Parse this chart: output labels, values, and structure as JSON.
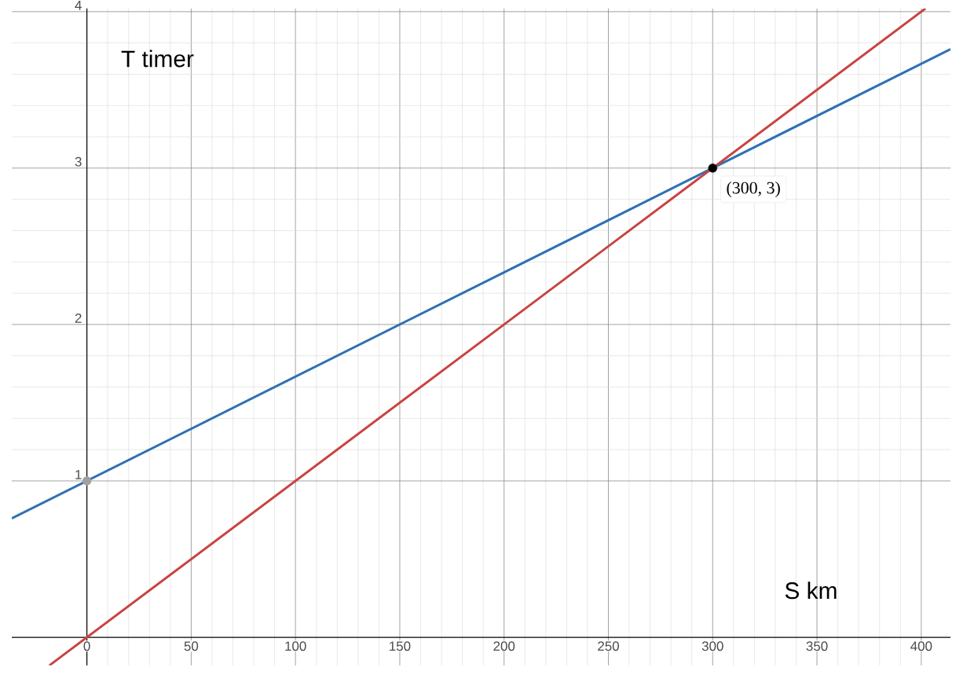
{
  "chart_data": {
    "type": "line",
    "xlabel": "S km",
    "ylabel": "T timer",
    "xlim": [
      -36,
      414
    ],
    "ylim": [
      -0.18,
      4.02
    ],
    "xticks": [
      0,
      50,
      100,
      150,
      200,
      250,
      300,
      350,
      400
    ],
    "yticks": [
      1,
      2,
      3,
      4
    ],
    "grid": true,
    "series": [
      {
        "color": "#2d70b3",
        "x": [
          -36,
          414
        ],
        "values": [
          0.76,
          3.76
        ]
      },
      {
        "color": "#c74440",
        "x": [
          -18,
          402
        ],
        "values": [
          -0.18,
          4.02
        ]
      },
      {
        "type": "scatter",
        "marker": "circle",
        "color": "#a0a0a0",
        "x": [
          0
        ],
        "values": [
          1
        ]
      },
      {
        "type": "scatter",
        "marker": "circle",
        "color": "#000000",
        "x": [
          300
        ],
        "values": [
          3
        ]
      }
    ],
    "annotations": [
      {
        "text": "(300, 3)",
        "x": 300,
        "y": 3
      }
    ]
  }
}
